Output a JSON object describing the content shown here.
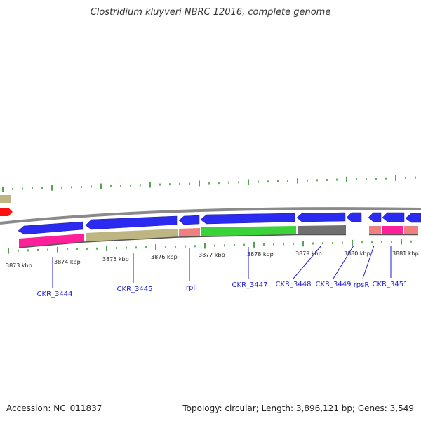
{
  "title": "Clostridium kluyveri NBRC 12016, complete genome",
  "footer": {
    "accession": "Accession: NC_011837",
    "topology": "Topology: circular; Length: 3,896,121 bp; Genes: 3,549"
  },
  "colors": {
    "forward_gene": "#2a2af0",
    "gc_high": "#ff1f9a",
    "olive": "#bdb582",
    "salmon": "#f08080",
    "green": "#3ad43a",
    "gray": "#707070",
    "red_gene": "#ff1010",
    "ticks": "#2a8a2a",
    "backbone": "#8a8a8a",
    "label": "#1a1ad8"
  },
  "scale_labels": [
    "3873 kbp",
    "3874 kbp",
    "3875 kbp",
    "3876 kbp",
    "3877 kbp",
    "3878 kbp",
    "3879 kbp",
    "3880 kbp",
    "3881 kbp"
  ],
  "gene_labels": [
    "CKR_3444",
    "CKR_3445",
    "rplI",
    "CKR_3447",
    "CKR_3448",
    "CKR_3449",
    "rpsR",
    "CKR_3451"
  ]
}
